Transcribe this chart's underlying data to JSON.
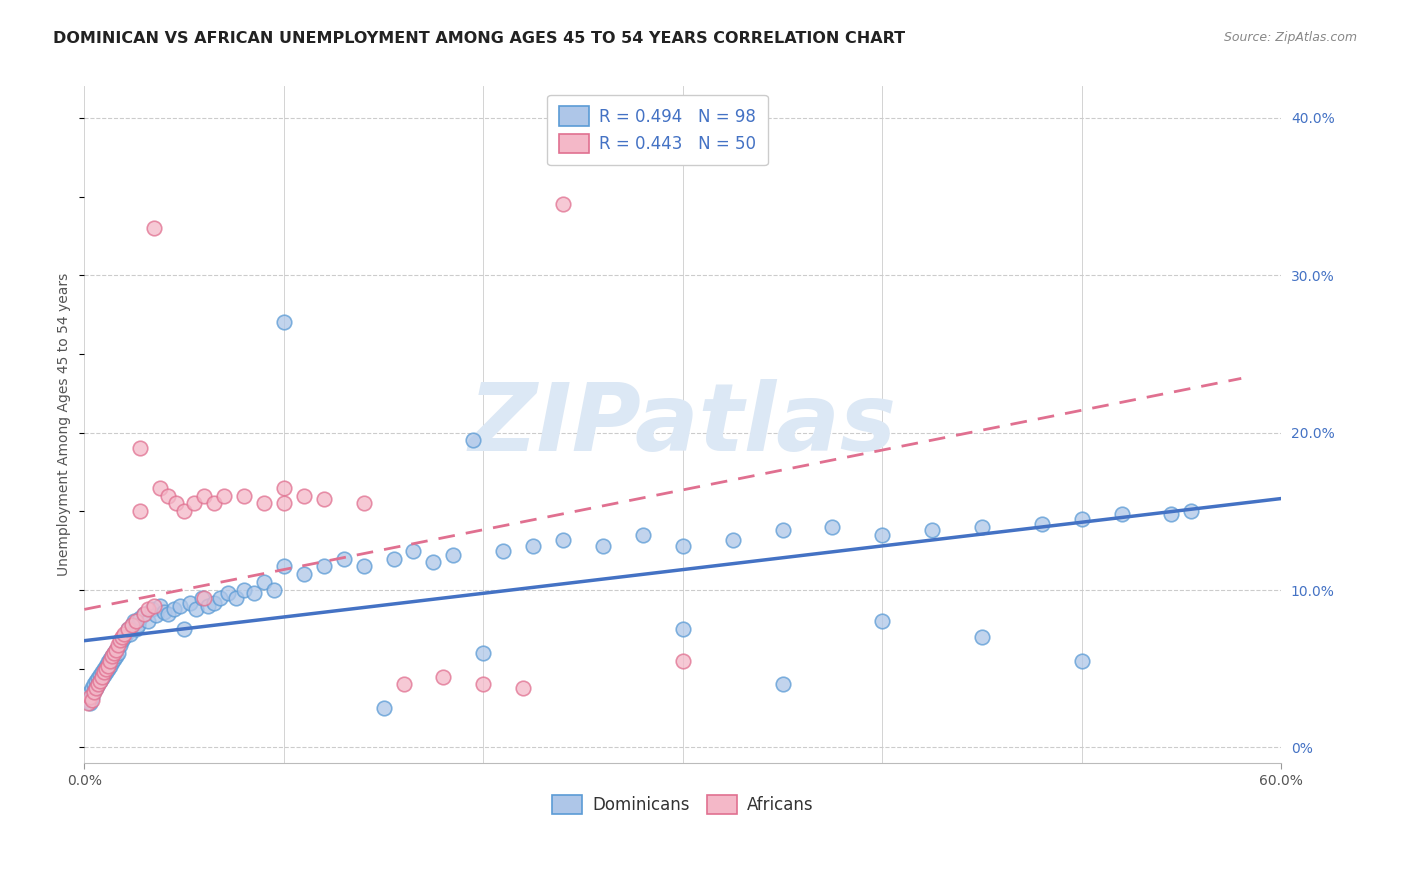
{
  "title": "DOMINICAN VS AFRICAN UNEMPLOYMENT AMONG AGES 45 TO 54 YEARS CORRELATION CHART",
  "source": "Source: ZipAtlas.com",
  "ylabel": "Unemployment Among Ages 45 to 54 years",
  "dominican_R": "R = 0.494",
  "dominican_N": "N = 98",
  "african_R": "R = 0.443",
  "african_N": "N = 50",
  "dominican_color": "#aec6e8",
  "dominican_edge_color": "#5b9bd5",
  "african_color": "#f4b8c8",
  "african_edge_color": "#e07090",
  "dominican_line_color": "#4472c4",
  "african_line_color": "#e07090",
  "xlim": [
    0.0,
    0.6
  ],
  "ylim": [
    -0.01,
    0.42
  ],
  "y_ticks": [
    0.0,
    0.1,
    0.2,
    0.3,
    0.4
  ],
  "y_tick_labels": [
    "0%",
    "10.0%",
    "20.0%",
    "30.0%",
    "40.0%"
  ],
  "background_color": "#ffffff",
  "grid_color": "#cccccc",
  "title_fontsize": 11.5,
  "axis_fontsize": 10,
  "legend_fontsize": 12,
  "watermark_color": "#dce8f5",
  "watermark_text": "ZIPatlas",
  "note_color": "#4472c4",
  "dom_seed_x": [
    0.002,
    0.003,
    0.003,
    0.004,
    0.004,
    0.005,
    0.005,
    0.006,
    0.006,
    0.007,
    0.007,
    0.008,
    0.008,
    0.009,
    0.009,
    0.01,
    0.01,
    0.011,
    0.011,
    0.012,
    0.012,
    0.013,
    0.013,
    0.014,
    0.014,
    0.015,
    0.015,
    0.016,
    0.016,
    0.017,
    0.018,
    0.019,
    0.02,
    0.021,
    0.022,
    0.023,
    0.024,
    0.025,
    0.026,
    0.027,
    0.028,
    0.03,
    0.032,
    0.034,
    0.036,
    0.038,
    0.04,
    0.042,
    0.045,
    0.048,
    0.05,
    0.053,
    0.056,
    0.059,
    0.062,
    0.065,
    0.068,
    0.072,
    0.076,
    0.08,
    0.085,
    0.09,
    0.095,
    0.1,
    0.11,
    0.12,
    0.13,
    0.14,
    0.155,
    0.165,
    0.175,
    0.185,
    0.195,
    0.21,
    0.225,
    0.24,
    0.26,
    0.28,
    0.3,
    0.325,
    0.35,
    0.375,
    0.4,
    0.425,
    0.45,
    0.48,
    0.5,
    0.52,
    0.545,
    0.555,
    0.1,
    0.2,
    0.3,
    0.4,
    0.5,
    0.35,
    0.45,
    0.15
  ],
  "dom_seed_y": [
    0.03,
    0.028,
    0.035,
    0.032,
    0.038,
    0.036,
    0.04,
    0.038,
    0.042,
    0.04,
    0.044,
    0.042,
    0.046,
    0.044,
    0.048,
    0.046,
    0.05,
    0.048,
    0.052,
    0.05,
    0.054,
    0.052,
    0.056,
    0.054,
    0.058,
    0.056,
    0.06,
    0.058,
    0.062,
    0.06,
    0.065,
    0.068,
    0.07,
    0.072,
    0.075,
    0.072,
    0.078,
    0.08,
    0.075,
    0.078,
    0.082,
    0.085,
    0.08,
    0.088,
    0.084,
    0.09,
    0.086,
    0.085,
    0.088,
    0.09,
    0.075,
    0.092,
    0.088,
    0.095,
    0.09,
    0.092,
    0.095,
    0.098,
    0.095,
    0.1,
    0.098,
    0.105,
    0.1,
    0.27,
    0.11,
    0.115,
    0.12,
    0.115,
    0.12,
    0.125,
    0.118,
    0.122,
    0.195,
    0.125,
    0.128,
    0.132,
    0.128,
    0.135,
    0.128,
    0.132,
    0.138,
    0.14,
    0.135,
    0.138,
    0.14,
    0.142,
    0.145,
    0.148,
    0.148,
    0.15,
    0.115,
    0.06,
    0.075,
    0.08,
    0.055,
    0.04,
    0.07,
    0.025
  ],
  "afr_seed_x": [
    0.002,
    0.003,
    0.004,
    0.005,
    0.006,
    0.007,
    0.008,
    0.009,
    0.01,
    0.011,
    0.012,
    0.013,
    0.014,
    0.015,
    0.016,
    0.017,
    0.018,
    0.019,
    0.02,
    0.022,
    0.024,
    0.026,
    0.028,
    0.03,
    0.032,
    0.035,
    0.038,
    0.042,
    0.046,
    0.05,
    0.055,
    0.06,
    0.065,
    0.07,
    0.08,
    0.09,
    0.1,
    0.11,
    0.12,
    0.14,
    0.16,
    0.18,
    0.2,
    0.22,
    0.24,
    0.028,
    0.035,
    0.06,
    0.1,
    0.3
  ],
  "afr_seed_y": [
    0.028,
    0.032,
    0.03,
    0.035,
    0.038,
    0.04,
    0.042,
    0.045,
    0.048,
    0.05,
    0.052,
    0.055,
    0.058,
    0.06,
    0.062,
    0.065,
    0.068,
    0.07,
    0.072,
    0.075,
    0.078,
    0.08,
    0.19,
    0.085,
    0.088,
    0.09,
    0.165,
    0.16,
    0.155,
    0.15,
    0.155,
    0.16,
    0.155,
    0.16,
    0.16,
    0.155,
    0.165,
    0.16,
    0.158,
    0.155,
    0.04,
    0.045,
    0.04,
    0.038,
    0.345,
    0.15,
    0.33,
    0.095,
    0.155,
    0.055
  ]
}
